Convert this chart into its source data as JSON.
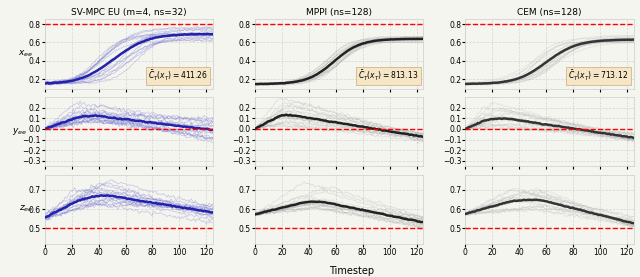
{
  "titles": [
    "SV-MPC EU (m=4, ns=32)",
    "MPPI (ns=128)",
    "CEM (ns=128)"
  ],
  "cost_labels": [
    "$\\bar{C}_T(x_T) = 411.26$",
    "$\\bar{C}_T(x_T) = 813.13$",
    "$\\bar{C}_T(x_T) = 713.12$"
  ],
  "xlabel": "Timestep",
  "ylabels": [
    "$x_{ee}$",
    "$y_{ee}$",
    "$z_{ee}$"
  ],
  "row_configs": [
    {
      "ylim": [
        0.1,
        0.85
      ],
      "yticks": [
        0.2,
        0.4,
        0.6,
        0.8
      ],
      "ref_line": 0.8
    },
    {
      "ylim": [
        -0.35,
        0.3
      ],
      "yticks": [
        -0.3,
        -0.2,
        -0.1,
        0.0,
        0.1,
        0.2
      ],
      "ref_line": 0.0
    },
    {
      "ylim": [
        0.42,
        0.78
      ],
      "yticks": [
        0.5,
        0.6,
        0.7
      ],
      "ref_line": 0.5
    }
  ],
  "T": 125,
  "n_sv_mpc": 16,
  "n_mppi": 16,
  "n_cem": 16,
  "sv_color": "#6666cc",
  "sv_mean_color": "#2222aa",
  "mppi_color": "#999999",
  "mppi_mean_color": "#222222",
  "cem_color": "#aaaaaa",
  "cem_mean_color": "#333333",
  "bg_color": "#f5f5f0",
  "cost_box_color": "#f5e6c8",
  "seed_sv": 42,
  "seed_mppi": 7,
  "seed_cem": 13
}
